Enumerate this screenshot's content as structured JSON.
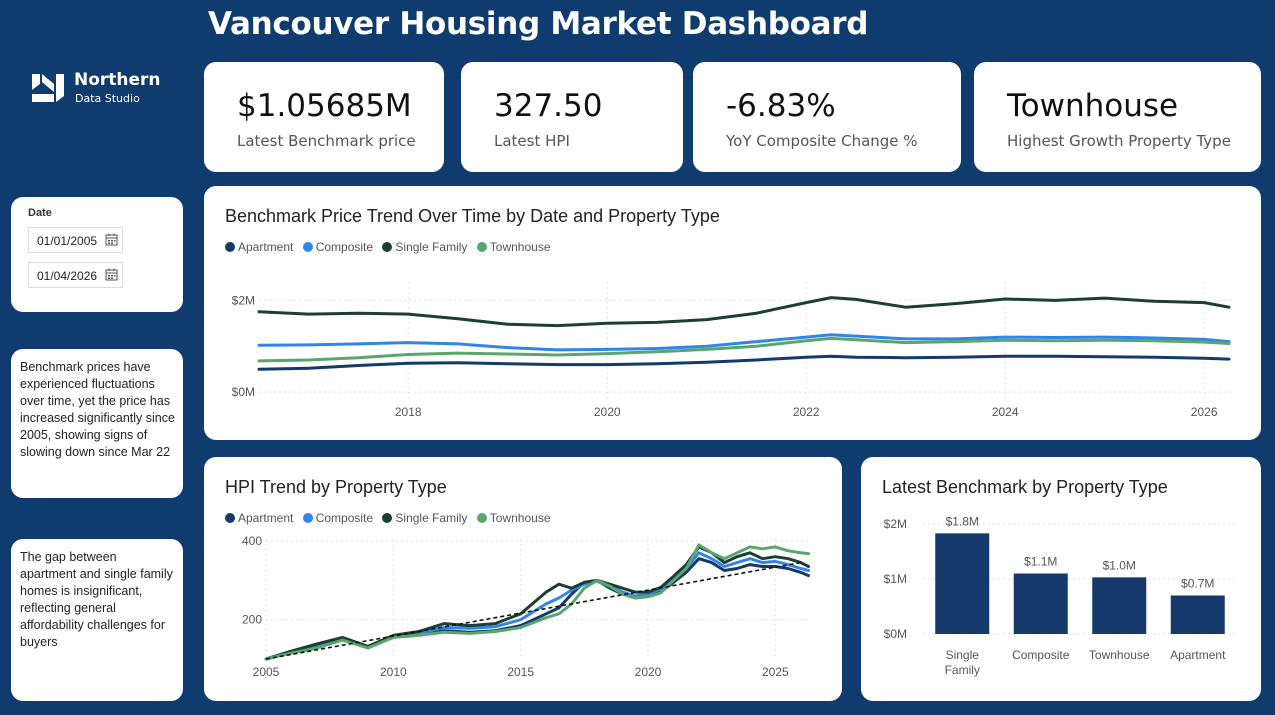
{
  "header": {
    "title": "Vancouver Housing Market Dashboard"
  },
  "logo": {
    "name": "Northern",
    "sub": "Data Studio"
  },
  "kpis": [
    {
      "value": "$1.05685M",
      "label": "Latest Benchmark price"
    },
    {
      "value": "327.50",
      "label": "Latest HPI"
    },
    {
      "value": "-6.83%",
      "label": "YoY Composite Change %"
    },
    {
      "value": "Townhouse",
      "label": "Highest Growth Property Type"
    }
  ],
  "slicer": {
    "title": "Date",
    "start": "01/01/2005",
    "end": "01/04/2026"
  },
  "notes": [
    "Benchmark prices have experienced fluctuations over time, yet the price has increased significantly since 2005, showing signs of slowing down since Mar 22",
    "The gap between apartment and single family homes is insignificant, reflecting general affordability challenges for buyers"
  ],
  "colors": {
    "Apartment": "#14396a",
    "Composite": "#2f86e8",
    "Single Family": "#1c3f33",
    "Townhouse": "#5ba66d",
    "bar": "#14396a"
  },
  "chart_data": [
    {
      "type": "line",
      "title": "Benchmark Price Trend Over Time by Date and Property Type",
      "legend": [
        "Apartment",
        "Composite",
        "Single Family",
        "Townhouse"
      ],
      "x": [
        2016.5,
        2017,
        2017.5,
        2018,
        2018.5,
        2019,
        2019.5,
        2020,
        2020.5,
        2021,
        2021.5,
        2022,
        2022.25,
        2022.5,
        2023,
        2023.5,
        2024,
        2024.5,
        2025,
        2025.5,
        2026,
        2026.25
      ],
      "series": [
        {
          "name": "Apartment",
          "values": [
            0.5,
            0.52,
            0.58,
            0.63,
            0.64,
            0.62,
            0.6,
            0.6,
            0.62,
            0.65,
            0.7,
            0.76,
            0.78,
            0.76,
            0.75,
            0.76,
            0.78,
            0.78,
            0.77,
            0.76,
            0.74,
            0.72
          ]
        },
        {
          "name": "Composite",
          "values": [
            1.02,
            1.03,
            1.05,
            1.08,
            1.05,
            0.97,
            0.92,
            0.93,
            0.95,
            1.0,
            1.1,
            1.2,
            1.25,
            1.22,
            1.16,
            1.16,
            1.2,
            1.19,
            1.2,
            1.18,
            1.15,
            1.1
          ]
        },
        {
          "name": "Single Family",
          "values": [
            1.75,
            1.7,
            1.72,
            1.7,
            1.6,
            1.48,
            1.45,
            1.5,
            1.52,
            1.58,
            1.72,
            1.95,
            2.06,
            2.02,
            1.85,
            1.93,
            2.03,
            2.0,
            2.05,
            1.98,
            1.95,
            1.85
          ]
        },
        {
          "name": "Townhouse",
          "values": [
            0.68,
            0.7,
            0.75,
            0.82,
            0.85,
            0.83,
            0.81,
            0.84,
            0.88,
            0.93,
            1.0,
            1.12,
            1.17,
            1.14,
            1.08,
            1.1,
            1.13,
            1.12,
            1.13,
            1.12,
            1.09,
            1.06
          ]
        }
      ],
      "yticks": [
        {
          "value": 0,
          "label": "$0M"
        },
        {
          "value": 2,
          "label": "$2M"
        }
      ],
      "xticks": [
        2018,
        2020,
        2022,
        2024,
        2026
      ],
      "xlim": [
        2016.5,
        2026.3
      ],
      "ylim": [
        -0.15,
        2.4
      ],
      "grid": true
    },
    {
      "type": "line",
      "title": "HPI Trend by Property Type",
      "legend": [
        "Apartment",
        "Composite",
        "Single Family",
        "Townhouse"
      ],
      "x": [
        2005,
        2006,
        2007,
        2008,
        2009,
        2010,
        2011,
        2012,
        2013,
        2014,
        2015,
        2016,
        2016.5,
        2017,
        2017.5,
        2018,
        2018.5,
        2019,
        2019.5,
        2020,
        2020.5,
        2021,
        2021.5,
        2022,
        2022.5,
        2023,
        2023.5,
        2024,
        2024.5,
        2025,
        2025.5,
        2026,
        2026.3
      ],
      "series": [
        {
          "name": "Apartment",
          "values": [
            100,
            118,
            132,
            150,
            130,
            158,
            162,
            172,
            168,
            172,
            185,
            215,
            230,
            265,
            295,
            300,
            280,
            265,
            255,
            262,
            270,
            295,
            320,
            355,
            345,
            325,
            330,
            340,
            335,
            335,
            330,
            320,
            312
          ]
        },
        {
          "name": "Composite",
          "values": [
            100,
            118,
            135,
            152,
            130,
            158,
            165,
            180,
            178,
            182,
            200,
            240,
            255,
            275,
            290,
            298,
            285,
            270,
            260,
            265,
            278,
            305,
            330,
            370,
            355,
            335,
            345,
            355,
            345,
            348,
            340,
            330,
            325
          ]
        },
        {
          "name": "Single Family",
          "values": [
            100,
            120,
            138,
            155,
            132,
            160,
            170,
            190,
            185,
            190,
            215,
            270,
            290,
            280,
            295,
            300,
            290,
            280,
            270,
            270,
            282,
            310,
            340,
            385,
            370,
            345,
            360,
            370,
            355,
            360,
            355,
            345,
            335
          ]
        },
        {
          "name": "Townhouse",
          "values": [
            100,
            115,
            128,
            148,
            128,
            155,
            160,
            168,
            165,
            170,
            180,
            205,
            215,
            240,
            280,
            300,
            285,
            265,
            255,
            258,
            268,
            300,
            330,
            390,
            370,
            355,
            370,
            385,
            380,
            385,
            375,
            370,
            368
          ]
        }
      ],
      "trendline": {
        "x": [
          2005,
          2026
        ],
        "y": [
          100,
          345
        ]
      },
      "yticks": [
        200,
        400
      ],
      "xticks": [
        2005,
        2010,
        2015,
        2020,
        2025
      ],
      "xlim": [
        2005,
        2026.4
      ],
      "ylim": [
        100,
        405
      ],
      "grid": true
    },
    {
      "type": "bar",
      "title": "Latest Benchmark by Property Type",
      "categories": [
        "Single Family",
        "Composite",
        "Townhouse",
        "Apartment"
      ],
      "values": [
        1.83,
        1.1,
        1.03,
        0.7
      ],
      "data_labels": [
        "$1.8M",
        "$1.1M",
        "$1.0M",
        "$0.7M"
      ],
      "yticks": [
        {
          "value": 0,
          "label": "$0M"
        },
        {
          "value": 1,
          "label": "$1M"
        },
        {
          "value": 2,
          "label": "$2M"
        }
      ],
      "ylim": [
        0,
        2
      ],
      "grid": true
    }
  ]
}
